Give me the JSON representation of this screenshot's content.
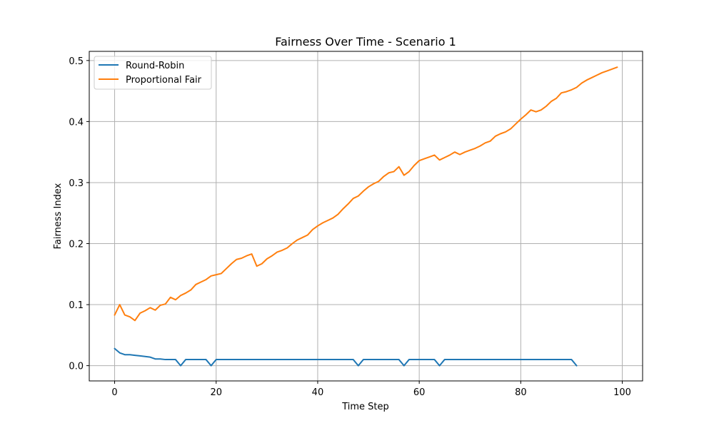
{
  "chart_data": {
    "type": "line",
    "title": "Fairness Over Time - Scenario 1",
    "xlabel": "Time Step",
    "ylabel": "Fairness Index",
    "xlim": [
      -5,
      104
    ],
    "ylim": [
      -0.025,
      0.515
    ],
    "xticks": [
      0,
      20,
      40,
      60,
      80,
      100
    ],
    "yticks": [
      0.0,
      0.1,
      0.2,
      0.3,
      0.4,
      0.5
    ],
    "xtick_labels": [
      "0",
      "20",
      "40",
      "60",
      "80",
      "100"
    ],
    "ytick_labels": [
      "0.0",
      "0.1",
      "0.2",
      "0.3",
      "0.4",
      "0.5"
    ],
    "grid": true,
    "legend": "upper-left",
    "series": [
      {
        "name": "Round-Robin",
        "color": "#1f77b4",
        "x": [
          0,
          1,
          2,
          3,
          4,
          5,
          6,
          7,
          8,
          9,
          10,
          11,
          12,
          13,
          14,
          15,
          16,
          17,
          18,
          19,
          20,
          21,
          22,
          23,
          24,
          25,
          26,
          27,
          28,
          29,
          30,
          31,
          32,
          33,
          34,
          35,
          36,
          37,
          38,
          39,
          40,
          41,
          42,
          43,
          44,
          45,
          46,
          47,
          48,
          49,
          50,
          51,
          52,
          53,
          54,
          55,
          56,
          57,
          58,
          59,
          60,
          61,
          62,
          63,
          64,
          65,
          66,
          67,
          68,
          69,
          70,
          71,
          72,
          73,
          74,
          75,
          76,
          77,
          78,
          79,
          80,
          81,
          82,
          83,
          84,
          85,
          86,
          87,
          88,
          89,
          90,
          91
        ],
        "y": [
          0.028,
          0.021,
          0.018,
          0.018,
          0.017,
          0.016,
          0.015,
          0.014,
          0.011,
          0.011,
          0.01,
          0.01,
          0.01,
          0.0,
          0.01,
          0.01,
          0.01,
          0.01,
          0.01,
          0.0,
          0.01,
          0.01,
          0.01,
          0.01,
          0.01,
          0.01,
          0.01,
          0.01,
          0.01,
          0.01,
          0.01,
          0.01,
          0.01,
          0.01,
          0.01,
          0.01,
          0.01,
          0.01,
          0.01,
          0.01,
          0.01,
          0.01,
          0.01,
          0.01,
          0.01,
          0.01,
          0.01,
          0.01,
          0.0,
          0.01,
          0.01,
          0.01,
          0.01,
          0.01,
          0.01,
          0.01,
          0.01,
          0.0,
          0.01,
          0.01,
          0.01,
          0.01,
          0.01,
          0.01,
          0.0,
          0.01,
          0.01,
          0.01,
          0.01,
          0.01,
          0.01,
          0.01,
          0.01,
          0.01,
          0.01,
          0.01,
          0.01,
          0.01,
          0.01,
          0.01,
          0.01,
          0.01,
          0.01,
          0.01,
          0.01,
          0.01,
          0.01,
          0.01,
          0.01,
          0.01,
          0.01,
          0.0
        ]
      },
      {
        "name": "Proportional Fair",
        "color": "#ff7f0e",
        "x": [
          0,
          1,
          2,
          3,
          4,
          5,
          6,
          7,
          8,
          9,
          10,
          11,
          12,
          13,
          14,
          15,
          16,
          17,
          18,
          19,
          20,
          21,
          22,
          23,
          24,
          25,
          26,
          27,
          28,
          29,
          30,
          31,
          32,
          33,
          34,
          35,
          36,
          37,
          38,
          39,
          40,
          41,
          42,
          43,
          44,
          45,
          46,
          47,
          48,
          49,
          50,
          51,
          52,
          53,
          54,
          55,
          56,
          57,
          58,
          59,
          60,
          61,
          62,
          63,
          64,
          65,
          66,
          67,
          68,
          69,
          70,
          71,
          72,
          73,
          74,
          75,
          76,
          77,
          78,
          79,
          80,
          81,
          82,
          83,
          84,
          85,
          86,
          87,
          88,
          89,
          90,
          91,
          92,
          93,
          94,
          95,
          96,
          97,
          98,
          99
        ],
        "y": [
          0.083,
          0.1,
          0.083,
          0.08,
          0.074,
          0.086,
          0.09,
          0.095,
          0.091,
          0.099,
          0.101,
          0.112,
          0.108,
          0.115,
          0.119,
          0.124,
          0.133,
          0.137,
          0.141,
          0.147,
          0.149,
          0.151,
          0.159,
          0.167,
          0.174,
          0.176,
          0.18,
          0.183,
          0.163,
          0.167,
          0.175,
          0.18,
          0.186,
          0.189,
          0.193,
          0.2,
          0.206,
          0.21,
          0.214,
          0.223,
          0.229,
          0.234,
          0.238,
          0.242,
          0.248,
          0.257,
          0.265,
          0.274,
          0.278,
          0.286,
          0.293,
          0.298,
          0.302,
          0.31,
          0.316,
          0.318,
          0.326,
          0.312,
          0.318,
          0.328,
          0.336,
          0.339,
          0.342,
          0.345,
          0.337,
          0.341,
          0.345,
          0.35,
          0.346,
          0.35,
          0.353,
          0.356,
          0.36,
          0.365,
          0.368,
          0.376,
          0.38,
          0.383,
          0.388,
          0.396,
          0.404,
          0.411,
          0.419,
          0.416,
          0.419,
          0.425,
          0.433,
          0.438,
          0.447,
          0.449,
          0.452,
          0.456,
          0.463,
          0.468,
          0.472,
          0.476,
          0.48,
          0.483,
          0.486,
          0.489
        ]
      }
    ]
  }
}
